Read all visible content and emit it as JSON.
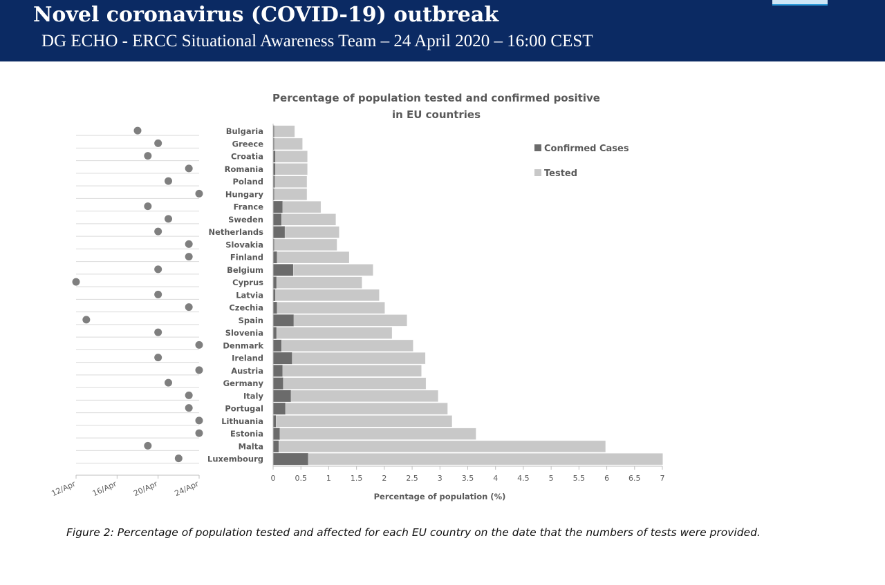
{
  "header": {
    "title": "Novel coronavirus (COVID-19) outbreak",
    "subtitle": "DG ECHO - ERCC Situational Awareness Team – 24 April 2020 – 16:00 CEST"
  },
  "chart_data": {
    "type": "bar",
    "title": "Percentage of population tested and confirmed positive in EU countries",
    "title_lines": [
      "Percentage of population tested and confirmed positive",
      "in EU countries"
    ],
    "orientation": "horizontal",
    "stacked": true,
    "categories": [
      "Bulgaria",
      "Greece",
      "Croatia",
      "Romania",
      "Poland",
      "Hungary",
      "France",
      "Sweden",
      "Netherlands",
      "Slovakia",
      "Finland",
      "Belgium",
      "Cyprus",
      "Latvia",
      "Czechia",
      "Spain",
      "Slovenia",
      "Denmark",
      "Ireland",
      "Austria",
      "Germany",
      "Italy",
      "Portugal",
      "Lithuania",
      "Estonia",
      "Malta",
      "Luxembourg"
    ],
    "series": [
      {
        "name": "Confirmed Cases",
        "color": "#6b6b6b",
        "values": [
          0.02,
          0.02,
          0.04,
          0.04,
          0.03,
          0.02,
          0.17,
          0.15,
          0.21,
          0.02,
          0.07,
          0.36,
          0.06,
          0.04,
          0.07,
          0.37,
          0.06,
          0.15,
          0.34,
          0.17,
          0.18,
          0.32,
          0.22,
          0.05,
          0.12,
          0.1,
          0.63
        ]
      },
      {
        "name": "Tested",
        "color": "#c8c8c8",
        "values": [
          0.37,
          0.51,
          0.58,
          0.58,
          0.58,
          0.59,
          0.69,
          0.98,
          0.98,
          1.13,
          1.3,
          1.44,
          1.54,
          1.87,
          1.94,
          2.04,
          2.08,
          2.37,
          2.4,
          2.5,
          2.57,
          2.65,
          2.92,
          3.17,
          3.53,
          5.88,
          6.38
        ]
      }
    ],
    "xlabel": "Percentage of population (%)",
    "xlim": [
      0,
      7
    ],
    "xticks": [
      "0",
      "0.5",
      "1",
      "1.5",
      "2",
      "2.5",
      "3",
      "3.5",
      "4",
      "4.5",
      "5",
      "5.5",
      "6",
      "6.5",
      "7"
    ],
    "legend": {
      "position": "top-right",
      "entries": [
        "Confirmed Cases",
        "Tested"
      ]
    },
    "dot_plot": {
      "type": "scatter",
      "description_axis": "date of tests",
      "xticks": [
        "12/Apr",
        "16/Apr",
        "20/Apr",
        "24/Apr"
      ],
      "xlim": [
        "12/Apr",
        "24/Apr"
      ],
      "dates": [
        "18/Apr",
        "20/Apr",
        "19/Apr",
        "23/Apr",
        "21/Apr",
        "24/Apr",
        "19/Apr",
        "21/Apr",
        "20/Apr",
        "23/Apr",
        "23/Apr",
        "20/Apr",
        "12/Apr",
        "20/Apr",
        "23/Apr",
        "13/Apr",
        "20/Apr",
        "24/Apr",
        "20/Apr",
        "24/Apr",
        "21/Apr",
        "23/Apr",
        "23/Apr",
        "24/Apr",
        "24/Apr",
        "19/Apr",
        "22/Apr"
      ],
      "color": "#7f7f7f"
    }
  },
  "caption": "Figure 2: Percentage of population tested and affected for each EU country on the date that the numbers of tests were provided."
}
